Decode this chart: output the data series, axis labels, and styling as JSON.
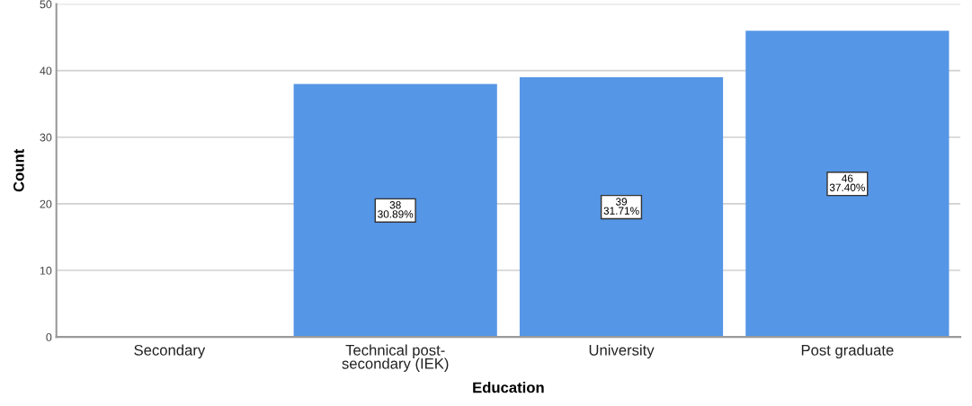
{
  "chart_data": {
    "type": "bar",
    "xlabel": "Education",
    "ylabel": "Count",
    "categories": [
      "Secondary",
      "Technical post-\nsecondary (IEK)",
      "University",
      "Post graduate"
    ],
    "values": [
      0,
      38,
      39,
      46
    ],
    "color": "#5596e6",
    "value_labels": [
      null,
      "38\n30.89%",
      "39\n31.71%",
      "46\n37.40%"
    ],
    "ylim": [
      0,
      50
    ],
    "yticks": [
      0,
      10,
      20,
      30,
      40,
      50
    ],
    "grid": "y"
  }
}
